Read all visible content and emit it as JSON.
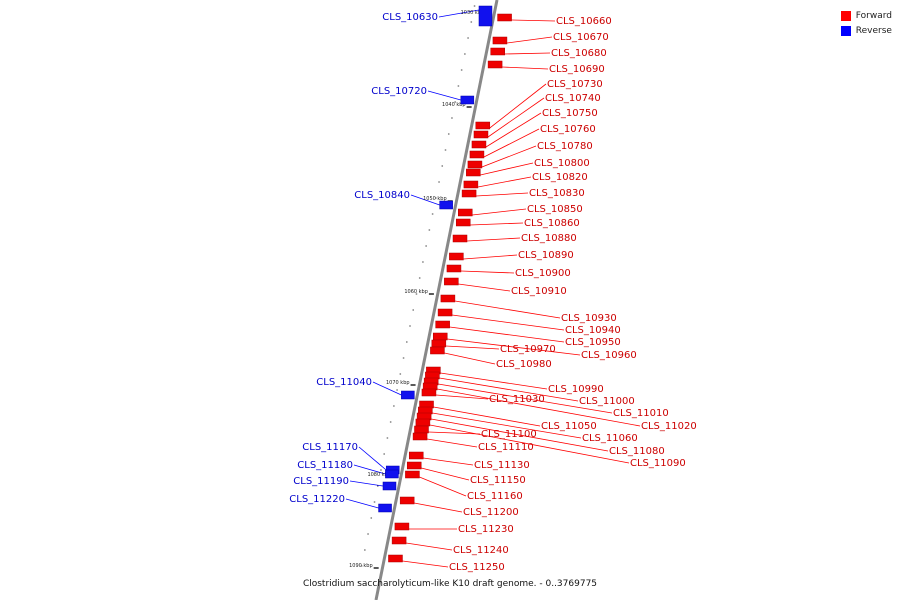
{
  "legend": {
    "forward_label": "Forward",
    "reverse_label": "Reverse",
    "forward_color": "#ff0000",
    "reverse_color": "#0000ff"
  },
  "caption": "Clostridium saccharolyticum-like K10 draft genome. - 0..3769775",
  "ticks": [
    "1030 kbp",
    "1040 kbp",
    "1050 kbp",
    "1060 kbp",
    "1070 kbp",
    "1080 kbp",
    "1090 kbp"
  ],
  "forward_genes": [
    "CLS_10660",
    "CLS_10670",
    "CLS_10680",
    "CLS_10690",
    "CLS_10730",
    "CLS_10740",
    "CLS_10750",
    "CLS_10760",
    "CLS_10780",
    "CLS_10800",
    "CLS_10820",
    "CLS_10830",
    "CLS_10850",
    "CLS_10860",
    "CLS_10880",
    "CLS_10890",
    "CLS_10900",
    "CLS_10910",
    "CLS_10930",
    "CLS_10940",
    "CLS_10950",
    "CLS_10960",
    "CLS_10970",
    "CLS_10980",
    "CLS_10990",
    "CLS_11000",
    "CLS_11010",
    "CLS_11020",
    "CLS_11030",
    "CLS_11050",
    "CLS_11060",
    "CLS_11080",
    "CLS_11090",
    "CLS_11100",
    "CLS_11110",
    "CLS_11130",
    "CLS_11150",
    "CLS_11160",
    "CLS_11200",
    "CLS_11230",
    "CLS_11240",
    "CLS_11250"
  ],
  "reverse_genes": [
    "CLS_10630",
    "CLS_10720",
    "CLS_10840",
    "CLS_11040",
    "CLS_11170",
    "CLS_11180",
    "CLS_11190",
    "CLS_11220"
  ]
}
